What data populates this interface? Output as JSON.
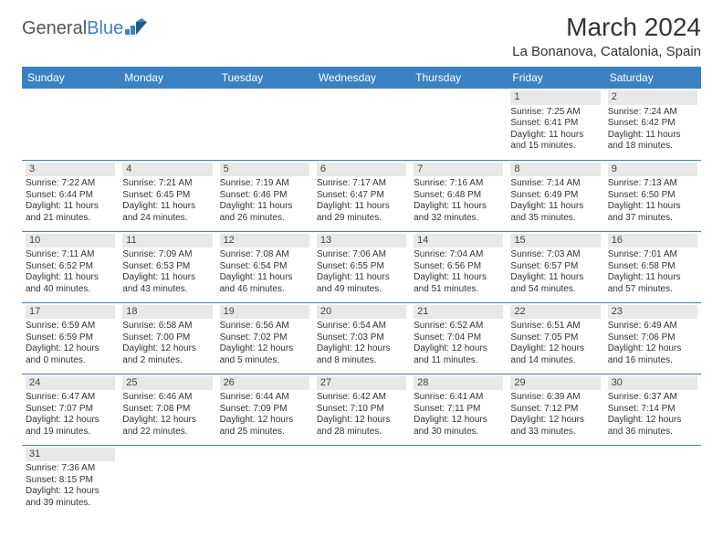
{
  "logo": {
    "text1": "General",
    "text2": "Blue"
  },
  "title": "March 2024",
  "location": "La Bonanova, Catalonia, Spain",
  "colors": {
    "header_bg": "#3b82c4",
    "header_fg": "#ffffff",
    "daynum_bg": "#e8e8e8",
    "border": "#3b82c4",
    "text": "#333333"
  },
  "weekdays": [
    "Sunday",
    "Monday",
    "Tuesday",
    "Wednesday",
    "Thursday",
    "Friday",
    "Saturday"
  ],
  "weeks": [
    [
      null,
      null,
      null,
      null,
      null,
      {
        "n": "1",
        "sr": "7:25 AM",
        "ss": "6:41 PM",
        "dl": "11 hours and 15 minutes."
      },
      {
        "n": "2",
        "sr": "7:24 AM",
        "ss": "6:42 PM",
        "dl": "11 hours and 18 minutes."
      }
    ],
    [
      {
        "n": "3",
        "sr": "7:22 AM",
        "ss": "6:44 PM",
        "dl": "11 hours and 21 minutes."
      },
      {
        "n": "4",
        "sr": "7:21 AM",
        "ss": "6:45 PM",
        "dl": "11 hours and 24 minutes."
      },
      {
        "n": "5",
        "sr": "7:19 AM",
        "ss": "6:46 PM",
        "dl": "11 hours and 26 minutes."
      },
      {
        "n": "6",
        "sr": "7:17 AM",
        "ss": "6:47 PM",
        "dl": "11 hours and 29 minutes."
      },
      {
        "n": "7",
        "sr": "7:16 AM",
        "ss": "6:48 PM",
        "dl": "11 hours and 32 minutes."
      },
      {
        "n": "8",
        "sr": "7:14 AM",
        "ss": "6:49 PM",
        "dl": "11 hours and 35 minutes."
      },
      {
        "n": "9",
        "sr": "7:13 AM",
        "ss": "6:50 PM",
        "dl": "11 hours and 37 minutes."
      }
    ],
    [
      {
        "n": "10",
        "sr": "7:11 AM",
        "ss": "6:52 PM",
        "dl": "11 hours and 40 minutes."
      },
      {
        "n": "11",
        "sr": "7:09 AM",
        "ss": "6:53 PM",
        "dl": "11 hours and 43 minutes."
      },
      {
        "n": "12",
        "sr": "7:08 AM",
        "ss": "6:54 PM",
        "dl": "11 hours and 46 minutes."
      },
      {
        "n": "13",
        "sr": "7:06 AM",
        "ss": "6:55 PM",
        "dl": "11 hours and 49 minutes."
      },
      {
        "n": "14",
        "sr": "7:04 AM",
        "ss": "6:56 PM",
        "dl": "11 hours and 51 minutes."
      },
      {
        "n": "15",
        "sr": "7:03 AM",
        "ss": "6:57 PM",
        "dl": "11 hours and 54 minutes."
      },
      {
        "n": "16",
        "sr": "7:01 AM",
        "ss": "6:58 PM",
        "dl": "11 hours and 57 minutes."
      }
    ],
    [
      {
        "n": "17",
        "sr": "6:59 AM",
        "ss": "6:59 PM",
        "dl": "12 hours and 0 minutes."
      },
      {
        "n": "18",
        "sr": "6:58 AM",
        "ss": "7:00 PM",
        "dl": "12 hours and 2 minutes."
      },
      {
        "n": "19",
        "sr": "6:56 AM",
        "ss": "7:02 PM",
        "dl": "12 hours and 5 minutes."
      },
      {
        "n": "20",
        "sr": "6:54 AM",
        "ss": "7:03 PM",
        "dl": "12 hours and 8 minutes."
      },
      {
        "n": "21",
        "sr": "6:52 AM",
        "ss": "7:04 PM",
        "dl": "12 hours and 11 minutes."
      },
      {
        "n": "22",
        "sr": "6:51 AM",
        "ss": "7:05 PM",
        "dl": "12 hours and 14 minutes."
      },
      {
        "n": "23",
        "sr": "6:49 AM",
        "ss": "7:06 PM",
        "dl": "12 hours and 16 minutes."
      }
    ],
    [
      {
        "n": "24",
        "sr": "6:47 AM",
        "ss": "7:07 PM",
        "dl": "12 hours and 19 minutes."
      },
      {
        "n": "25",
        "sr": "6:46 AM",
        "ss": "7:08 PM",
        "dl": "12 hours and 22 minutes."
      },
      {
        "n": "26",
        "sr": "6:44 AM",
        "ss": "7:09 PM",
        "dl": "12 hours and 25 minutes."
      },
      {
        "n": "27",
        "sr": "6:42 AM",
        "ss": "7:10 PM",
        "dl": "12 hours and 28 minutes."
      },
      {
        "n": "28",
        "sr": "6:41 AM",
        "ss": "7:11 PM",
        "dl": "12 hours and 30 minutes."
      },
      {
        "n": "29",
        "sr": "6:39 AM",
        "ss": "7:12 PM",
        "dl": "12 hours and 33 minutes."
      },
      {
        "n": "30",
        "sr": "6:37 AM",
        "ss": "7:14 PM",
        "dl": "12 hours and 36 minutes."
      }
    ],
    [
      {
        "n": "31",
        "sr": "7:36 AM",
        "ss": "8:15 PM",
        "dl": "12 hours and 39 minutes."
      },
      null,
      null,
      null,
      null,
      null,
      null
    ]
  ],
  "labels": {
    "sunrise": "Sunrise:",
    "sunset": "Sunset:",
    "daylight": "Daylight:"
  }
}
